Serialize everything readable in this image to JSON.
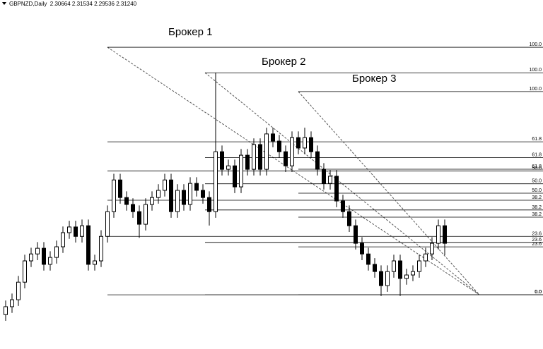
{
  "chart_data": {
    "type": "candlestick",
    "header": "GBPNZD,Daily  2.30664 2.31534 2.29536 2.31240",
    "ylim": [
      -21.9,
      119.1
    ],
    "categories": [
      null,
      null,
      null,
      null,
      null,
      null,
      null,
      null,
      null,
      null,
      null,
      null,
      null,
      null,
      null,
      null,
      null,
      null,
      null,
      null,
      null,
      null,
      null,
      null,
      null,
      null,
      null,
      null,
      null,
      null,
      null,
      null,
      null,
      null,
      null,
      null,
      null,
      null,
      null,
      null,
      null,
      null,
      null,
      null,
      null,
      null,
      null,
      null,
      null,
      null,
      null,
      null,
      null,
      null,
      null,
      null,
      null,
      null,
      null,
      null,
      null,
      null,
      null,
      null,
      null,
      null,
      null,
      null,
      null,
      null
    ],
    "open": [
      -8,
      -4.8,
      -2.0,
      5.1,
      13.7,
      16.5,
      18.8,
      12.3,
      15.1,
      19.4,
      25.1,
      27.4,
      23.6,
      27.9,
      12.3,
      13.7,
      23.6,
      33.6,
      46.4,
      39.3,
      36.5,
      33.6,
      28.5,
      36.5,
      39.3,
      42.2,
      46.4,
      33.6,
      42.2,
      36.5,
      45.0,
      42.2,
      39.3,
      33.6,
      57.8,
      50.7,
      52.1,
      43.6,
      56.4,
      50.7,
      60.7,
      50.7,
      65.0,
      62.1,
      57.8,
      52.1,
      63.5,
      59.3,
      63.5,
      57.8,
      50.7,
      45.0,
      47.9,
      37.9,
      33.6,
      27.9,
      20.8,
      16.5,
      12.3,
      9.4,
      3.7,
      9.4,
      13.7,
      6.6,
      8.0,
      9.4,
      13.7,
      16.5,
      20.8,
      27.9
    ],
    "high": [
      -2.3,
      0.5,
      7.6,
      16.2,
      19.0,
      21.3,
      21.3,
      17.6,
      21.9,
      27.6,
      29.9,
      29.9,
      30.4,
      30.4,
      16.2,
      26.1,
      36.1,
      48.9,
      48.9,
      41.8,
      39.0,
      36.1,
      39.0,
      41.8,
      44.7,
      48.9,
      48.9,
      44.7,
      44.7,
      47.5,
      47.5,
      44.7,
      41.8,
      89.7,
      60.3,
      54.6,
      54.6,
      58.9,
      58.9,
      63.2,
      63.2,
      67.5,
      67.5,
      64.6,
      60.3,
      66.0,
      66.0,
      67.5,
      66.0,
      60.3,
      53.2,
      50.4,
      50.4,
      40.4,
      36.1,
      30.4,
      23.3,
      19.0,
      14.8,
      11.9,
      11.9,
      16.2,
      16.2,
      10.5,
      11.9,
      16.2,
      19.0,
      23.3,
      30.4,
      30.4
    ],
    "low": [
      -10.5,
      -7.3,
      -4.5,
      2.6,
      11.2,
      14.0,
      9.8,
      9.8,
      12.6,
      16.9,
      22.6,
      21.1,
      21.1,
      9.8,
      9.8,
      11.2,
      21.1,
      31.1,
      36.8,
      34.0,
      31.1,
      23.0,
      26.0,
      34.0,
      36.8,
      39.7,
      31.1,
      31.1,
      34.0,
      34.0,
      39.7,
      36.8,
      28.0,
      31.1,
      48.2,
      48.2,
      41.1,
      41.1,
      48.2,
      48.2,
      48.2,
      48.2,
      59.6,
      55.3,
      49.6,
      49.6,
      56.8,
      56.8,
      55.3,
      48.2,
      42.5,
      42.5,
      35.4,
      31.1,
      25.4,
      18.3,
      14.0,
      9.8,
      6.9,
      -0.5,
      1.2,
      6.9,
      -0.5,
      4.1,
      5.5,
      6.9,
      11.2,
      14.0,
      18.3,
      16.0
    ],
    "close": [
      -4.8,
      -2.0,
      5.1,
      13.7,
      16.5,
      18.8,
      12.3,
      15.1,
      19.4,
      25.1,
      27.4,
      23.6,
      27.9,
      12.3,
      13.7,
      23.6,
      33.6,
      46.4,
      39.3,
      36.5,
      33.6,
      28.5,
      36.5,
      39.3,
      42.2,
      46.4,
      33.6,
      42.2,
      36.5,
      45.0,
      42.2,
      39.3,
      33.6,
      57.8,
      50.7,
      52.1,
      43.6,
      56.4,
      50.7,
      60.7,
      50.7,
      65.0,
      62.1,
      57.8,
      52.1,
      63.5,
      59.3,
      63.5,
      57.8,
      50.7,
      45.0,
      47.9,
      37.9,
      33.6,
      27.9,
      20.8,
      16.5,
      12.3,
      9.4,
      3.7,
      9.4,
      13.7,
      6.6,
      8.0,
      9.4,
      13.7,
      16.5,
      20.8,
      27.9,
      20.8
    ],
    "fibonacci": [
      {
        "label": "Брокер 1",
        "high": 100,
        "low": 0,
        "levels": [
          {
            "value": 100,
            "label": "100.0"
          },
          61.8,
          {
            "value": 50,
            "label": "50.0"
          },
          38.2,
          23.6,
          {
            "value": 0,
            "label": "0.0"
          }
        ]
      },
      {
        "label": "Брокер 2",
        "high": 89.7,
        "low": 0,
        "levels": [
          {
            "value": 100,
            "label": "100.0"
          },
          61.8,
          {
            "value": 50,
            "label": "50.0"
          },
          38.2,
          23.6,
          {
            "value": 0,
            "label": "0.0"
          }
        ]
      },
      {
        "label": "Брокер 3",
        "high": 82.1,
        "low": 0,
        "levels": [
          {
            "value": 100,
            "label": "100.0"
          },
          61.8,
          {
            "value": 50,
            "label": "50.0"
          },
          38.2,
          23.6,
          {
            "value": 0,
            "label": "0.0"
          }
        ]
      }
    ]
  }
}
